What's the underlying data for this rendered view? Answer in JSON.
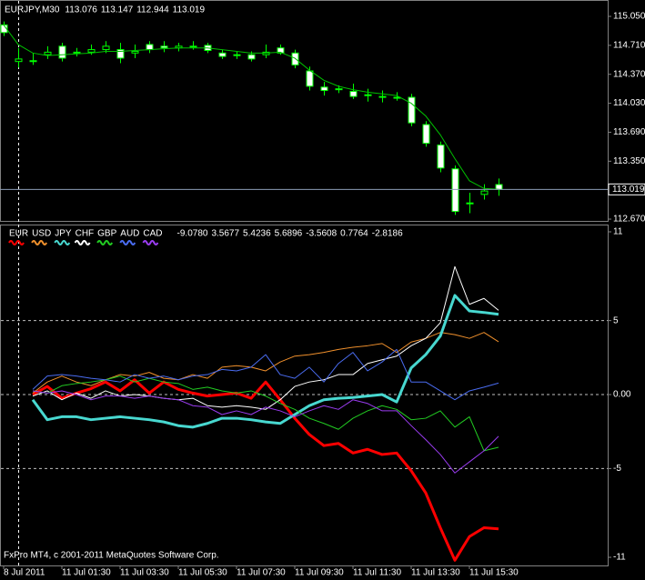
{
  "chart_data": [
    {
      "type": "candlestick",
      "title": "EURJPY,M30",
      "open": [
        114.95,
        114.52,
        114.53,
        114.6,
        114.7,
        114.62,
        114.63,
        114.66,
        114.66,
        114.62,
        114.72,
        114.7,
        114.68,
        114.7,
        114.71,
        114.62,
        114.6,
        114.6,
        114.6,
        114.68,
        114.62,
        114.41,
        114.22,
        114.2,
        114.17,
        114.12,
        114.11,
        114.1,
        114.1,
        113.78,
        113.54,
        113.26,
        112.85,
        112.96,
        113.076
      ],
      "high": [
        114.99,
        114.68,
        114.62,
        114.7,
        114.74,
        114.68,
        114.72,
        114.76,
        114.74,
        114.72,
        114.76,
        114.76,
        114.74,
        114.76,
        114.74,
        114.66,
        114.64,
        114.64,
        114.72,
        114.72,
        114.66,
        114.46,
        114.28,
        114.24,
        114.26,
        114.2,
        114.18,
        114.16,
        114.14,
        113.82,
        113.58,
        113.3,
        112.98,
        113.08,
        113.147
      ],
      "low": [
        114.82,
        114.45,
        114.48,
        114.55,
        114.52,
        114.58,
        114.6,
        114.62,
        114.5,
        114.56,
        114.62,
        114.63,
        114.64,
        114.66,
        114.62,
        114.55,
        114.55,
        114.52,
        114.56,
        114.6,
        114.44,
        114.18,
        114.12,
        114.15,
        114.08,
        114.05,
        114.04,
        114.06,
        113.76,
        113.52,
        113.22,
        112.72,
        112.74,
        112.9,
        112.944
      ],
      "close": [
        114.86,
        114.55,
        114.52,
        114.63,
        114.56,
        114.63,
        114.66,
        114.7,
        114.56,
        114.64,
        114.66,
        114.68,
        114.7,
        114.69,
        114.65,
        114.58,
        114.59,
        114.55,
        114.63,
        114.62,
        114.48,
        114.23,
        114.18,
        114.19,
        114.11,
        114.13,
        114.1,
        114.1,
        113.8,
        113.56,
        113.27,
        112.76,
        112.86,
        113.0,
        113.019
      ],
      "bull_color": "#000000",
      "bear_color": "#ffffff",
      "wick_color": "#00ff00",
      "moving_average": {
        "color": "#00c000",
        "values": [
          114.95,
          114.72,
          114.62,
          114.59,
          114.6,
          114.61,
          114.62,
          114.64,
          114.64,
          114.65,
          114.66,
          114.67,
          114.68,
          114.68,
          114.68,
          114.66,
          114.64,
          114.62,
          114.62,
          114.63,
          114.56,
          114.42,
          114.3,
          114.23,
          114.19,
          114.16,
          114.14,
          114.12,
          114.03,
          113.88,
          113.66,
          113.38,
          113.12,
          113.03,
          113.02
        ]
      },
      "ylim": [
        112.649,
        115.189
      ],
      "yticks": [
        {
          "value": 115.05,
          "label": "115.050"
        },
        {
          "value": 114.71,
          "label": "114.710"
        },
        {
          "value": 114.37,
          "label": "114.370"
        },
        {
          "value": 114.03,
          "label": "114.030"
        },
        {
          "value": 113.69,
          "label": "113.690"
        },
        {
          "value": 113.35,
          "label": "113.350"
        },
        {
          "value": 112.67,
          "label": "112.670"
        }
      ]
    },
    {
      "type": "line",
      "categories": [
        "8 Jul 2011",
        null,
        null,
        null,
        "11 Jul 01:30",
        null,
        null,
        null,
        "11 Jul 03:30",
        null,
        null,
        null,
        "11 Jul 05:30",
        null,
        null,
        null,
        "11 Jul 07:30",
        null,
        null,
        null,
        "11 Jul 09:30",
        null,
        null,
        null,
        "11 Jul 11:30",
        null,
        null,
        null,
        "11 Jul 13:30",
        null,
        null,
        null,
        "11 Jul 15:30",
        null,
        null
      ],
      "series": [
        {
          "name": "EUR",
          "color": "#ff0000",
          "line_width": 3,
          "values": [
            null,
            null,
            0,
            0.55,
            -0.25,
            0.1,
            0.4,
            0.85,
            0.25,
            1.0,
            0.1,
            0.85,
            0.35,
            0.1,
            -0.1,
            0,
            0.1,
            -0.25,
            0.85,
            -0.35,
            -1.6,
            -2.7,
            -3.45,
            -3.3,
            -3.95,
            -3.7,
            -4.05,
            -3.95,
            -5.15,
            -6.65,
            -9.0,
            -11.2,
            -9.6,
            -9.0,
            -9.078
          ],
          "value_labels": [
            null,
            null,
            null,
            null,
            null,
            null,
            null,
            null,
            null,
            null,
            null,
            null,
            null,
            null,
            null,
            null,
            null,
            null,
            null,
            null,
            null,
            null,
            null,
            null,
            null,
            null,
            null,
            null,
            null,
            null,
            null,
            null,
            null,
            null,
            "-9.0780"
          ]
        },
        {
          "name": "USD",
          "color": "#f0902c",
          "line_width": 1,
          "values": [
            null,
            null,
            0.1,
            0.85,
            1.25,
            0.85,
            0.6,
            1.0,
            1.35,
            1.25,
            1.5,
            1.1,
            1.0,
            1.35,
            1.1,
            1.85,
            1.95,
            1.85,
            1.6,
            2.2,
            2.6,
            2.7,
            2.85,
            3.05,
            3.2,
            3.3,
            3.45,
            2.85,
            3.55,
            3.8,
            4.2,
            4.05,
            3.8,
            4.2,
            3.5677
          ]
        },
        {
          "name": "JPY",
          "color": "#48d8d0",
          "line_width": 3,
          "values": [
            null,
            null,
            -0.35,
            -1.7,
            -1.5,
            -1.5,
            -1.7,
            -1.6,
            -1.5,
            -1.6,
            -1.7,
            -1.85,
            -2.1,
            -2.2,
            -1.95,
            -1.6,
            -1.6,
            -1.7,
            -1.85,
            -1.95,
            -1.35,
            -0.75,
            -0.35,
            -0.25,
            -0.2,
            -0.1,
            0,
            -0.5,
            1.8,
            2.7,
            3.95,
            6.7,
            5.65,
            5.55,
            5.4236
          ]
        },
        {
          "name": "CHF",
          "color": "#ffffff",
          "line_width": 1,
          "values": [
            null,
            null,
            -0.1,
            0.25,
            -0.35,
            0.1,
            -0.25,
            0.25,
            -0.1,
            0,
            -0.1,
            -0.25,
            -0.35,
            -0.25,
            -0.75,
            -0.85,
            -0.75,
            -0.85,
            -1.0,
            -0.35,
            0.55,
            0.85,
            1.0,
            1.35,
            1.35,
            2.1,
            2.35,
            2.6,
            3.3,
            3.8,
            4.85,
            8.65,
            6.1,
            6.5,
            5.6896
          ]
        },
        {
          "name": "GBP",
          "color": "#22cc22",
          "line_width": 1,
          "values": [
            null,
            null,
            0.25,
            0.1,
            0.6,
            0.75,
            0.85,
            1.0,
            1.25,
            0.85,
            1.1,
            0.85,
            0.75,
            0.35,
            0.5,
            0.25,
            0.1,
            0.25,
            -0.1,
            -0.6,
            -1.0,
            -1.6,
            -1.95,
            -2.35,
            -1.6,
            -1.1,
            -0.75,
            -1.0,
            -1.7,
            -1.6,
            -1.1,
            -2.2,
            -1.5,
            -3.8,
            -3.5608
          ]
        },
        {
          "name": "AUD",
          "color": "#4a6cf0",
          "line_width": 1,
          "values": [
            null,
            null,
            0.35,
            1.25,
            1.35,
            1.25,
            1.1,
            1.0,
            0.85,
            1.35,
            1.1,
            1.25,
            1.0,
            1.25,
            1.35,
            1.7,
            1.6,
            1.85,
            2.7,
            1.35,
            1.1,
            1.85,
            0.85,
            2.1,
            2.85,
            1.6,
            2.2,
            3.05,
            0.85,
            0.85,
            0.25,
            -0.35,
            0.25,
            0.5,
            0.7764
          ]
        },
        {
          "name": "CAD",
          "color": "#9a3cf0",
          "line_width": 1,
          "values": [
            null,
            null,
            0.25,
            0.1,
            0.25,
            0,
            -0.35,
            -0.1,
            -0.1,
            -0.25,
            -0.1,
            -0.25,
            -0.35,
            -0.75,
            -0.85,
            -1.35,
            -1.1,
            -1.35,
            -0.85,
            -1.1,
            -1.5,
            -1.1,
            -0.75,
            -1.0,
            -0.35,
            -0.6,
            -1.1,
            -1.1,
            -2.1,
            -3.05,
            -4.05,
            -5.3,
            -4.55,
            -3.8,
            -2.8186
          ]
        }
      ],
      "ylim": [
        -11.55,
        11.43
      ],
      "yticks": [
        11,
        5,
        {
          "value": 0,
          "label": "0.00"
        },
        -5,
        -11
      ],
      "levels": [
        5,
        0,
        -5
      ],
      "copyright": "FxPro MT4, c 2001-2011 MetaQuotes Software Corp."
    }
  ]
}
